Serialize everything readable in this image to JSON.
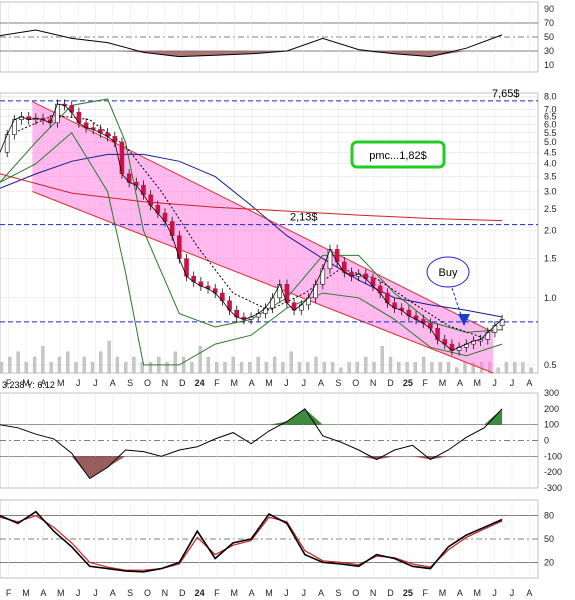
{
  "chart_data": [
    {
      "type": "line",
      "panel": "top-oscillator",
      "ylim": [
        0,
        100
      ],
      "tick_labels": [
        "90",
        "70",
        "50",
        "30",
        "10"
      ],
      "ticks": [
        90,
        70,
        50,
        30,
        10
      ],
      "reference_lines": [
        70,
        50,
        30
      ],
      "series": [
        {
          "color": "#000000",
          "x": [
            0,
            2,
            4,
            6,
            8,
            10,
            12,
            14,
            16,
            18,
            20,
            22,
            24,
            26,
            28
          ],
          "values": [
            52,
            60,
            48,
            42,
            28,
            22,
            24,
            26,
            30,
            48,
            32,
            26,
            22,
            34,
            53
          ]
        }
      ],
      "fill_below_threshold": {
        "threshold": 30,
        "color": "#9a5d5d"
      }
    },
    {
      "type": "line",
      "panel": "price",
      "y_scale": "log",
      "ylim": [
        0.46,
        8.3
      ],
      "tick_labels": [
        "8.0",
        "7.0",
        "6.5",
        "6.0",
        "5.5",
        "5.0",
        "4.5",
        "4.0",
        "3.5",
        "3.0",
        "2.5",
        "2.0",
        "1.5",
        "1.0",
        "0.5"
      ],
      "ticks": [
        8.0,
        7.0,
        6.5,
        6.0,
        5.5,
        5.0,
        4.5,
        4.0,
        3.5,
        3.0,
        2.5,
        2.0,
        1.5,
        1.0,
        0.5
      ],
      "horizontal_lines": [
        {
          "value": 7.65,
          "label": "7,65$",
          "color": "#2222cc"
        },
        {
          "value": 2.13,
          "label": "2,13$",
          "color": "#2222cc"
        },
        {
          "value": 0.78,
          "label": "",
          "color": "#2222cc"
        }
      ],
      "annotations": {
        "pmc_box": "pmc...1,82$",
        "buy_label": "Buy",
        "crosshair_readout": "3.238  Y: 6.12"
      },
      "series": [
        {
          "color": "#000000",
          "x": [
            0.0,
            0.4,
            0.8,
            1.2,
            1.6,
            2.0,
            2.4,
            2.8,
            3.2,
            3.6,
            4.0,
            4.4,
            4.8,
            5.2,
            5.6,
            6.0,
            6.4,
            6.8,
            7.2,
            7.6,
            8.0,
            8.4,
            8.8,
            9.2,
            9.6,
            10.0,
            10.4,
            10.8,
            11.2,
            11.6,
            12.0,
            12.4,
            12.8,
            13.2,
            13.6,
            14.0,
            14.4,
            14.8,
            15.2,
            15.6,
            16.0,
            16.4,
            16.8,
            17.2,
            17.6,
            18.0,
            18.4,
            18.8,
            19.2,
            19.6,
            20.0,
            20.4,
            20.8,
            21.2,
            21.6,
            22.0,
            22.4,
            22.8,
            23.2,
            23.6,
            24.0,
            24.4,
            24.8,
            25.2,
            25.6,
            26.0,
            26.4,
            26.8,
            27.2,
            27.6,
            28.0
          ],
          "values": [
            4.5,
            5.4,
            6.3,
            6.5,
            6.3,
            6.4,
            6.3,
            6.1,
            7.4,
            7.3,
            6.8,
            6.1,
            5.8,
            5.7,
            5.5,
            5.3,
            5.0,
            3.6,
            3.3,
            3.2,
            2.9,
            2.6,
            2.4,
            2.2,
            1.9,
            1.5,
            1.25,
            1.18,
            1.13,
            1.1,
            1.05,
            0.97,
            0.88,
            0.82,
            0.8,
            0.82,
            0.85,
            0.9,
            1.0,
            1.15,
            0.95,
            0.88,
            0.93,
            1.0,
            1.15,
            1.35,
            1.65,
            1.45,
            1.3,
            1.25,
            1.28,
            1.22,
            1.13,
            1.05,
            0.95,
            0.9,
            0.88,
            0.83,
            0.8,
            0.77,
            0.73,
            0.65,
            0.62,
            0.58,
            0.6,
            0.62,
            0.64,
            0.65,
            0.7,
            0.75,
            0.8
          ]
        },
        {
          "color": "#1a1a8a",
          "x": [
            0,
            2,
            4,
            6,
            8,
            10,
            12,
            14,
            16,
            18,
            20,
            22,
            24,
            26,
            28
          ],
          "values": [
            3.1,
            3.6,
            4.1,
            4.4,
            4.4,
            4.1,
            3.5,
            2.6,
            1.9,
            1.5,
            1.2,
            1.0,
            0.93,
            0.88,
            0.82
          ]
        },
        {
          "color": "#cc2222",
          "x": [
            0,
            4,
            8,
            12,
            16,
            20,
            24,
            28
          ],
          "values": [
            3.6,
            2.95,
            2.7,
            2.55,
            2.45,
            2.35,
            2.27,
            2.22
          ]
        },
        {
          "color": "#2a7a2a",
          "x": [
            0,
            2,
            4,
            6,
            7,
            8,
            10,
            12,
            14,
            16,
            18,
            20,
            22,
            24,
            26,
            28
          ],
          "values": [
            3.3,
            5.0,
            7.3,
            7.8,
            5.0,
            2.0,
            0.85,
            0.74,
            0.8,
            1.0,
            1.55,
            1.55,
            1.05,
            0.78,
            0.7,
            0.72
          ]
        },
        {
          "color": "#2a7a2a",
          "x": [
            0,
            2,
            4,
            6,
            7,
            8,
            10,
            12,
            14,
            16,
            18,
            20,
            22,
            24,
            26,
            28
          ],
          "values": [
            3.3,
            4.0,
            5.5,
            3.0,
            1.3,
            0.5,
            0.5,
            0.62,
            0.68,
            0.9,
            1.05,
            1.0,
            0.8,
            0.6,
            0.55,
            0.62
          ]
        },
        {
          "color": "#000000",
          "x": [
            1,
            3,
            5,
            7,
            9,
            11,
            13,
            15,
            17,
            19,
            21,
            23,
            25,
            27
          ],
          "values": [
            5.6,
            6.6,
            6.3,
            4.8,
            3.0,
            1.7,
            1.05,
            0.88,
            1.05,
            1.35,
            1.22,
            0.95,
            0.75,
            0.66
          ]
        }
      ],
      "channel": {
        "color": "#ff80e0",
        "upper": {
          "x": [
            1.8,
            27.5
          ],
          "values": [
            7.6,
            0.7
          ]
        },
        "lower": {
          "x": [
            1.8,
            27.5
          ],
          "values": [
            3.0,
            0.46
          ]
        }
      },
      "volume_bars": [
        2,
        3,
        4,
        2,
        3,
        5,
        2,
        3,
        4,
        2,
        3,
        2,
        4,
        6,
        3,
        2,
        3,
        2,
        2,
        3,
        2,
        4,
        3,
        2,
        5,
        3,
        2,
        2,
        3,
        2,
        2,
        3,
        2,
        3,
        2,
        4,
        2,
        2,
        3,
        2,
        2,
        1,
        2,
        2,
        3,
        2,
        5,
        3,
        2,
        2,
        2,
        3,
        2,
        2,
        2,
        1,
        2,
        2,
        2,
        2,
        1,
        2,
        2,
        2,
        1
      ]
    },
    {
      "type": "area",
      "panel": "momentum-oscillator",
      "ylim": [
        -300,
        300
      ],
      "tick_labels": [
        "300",
        "200",
        "100",
        "0",
        "-100",
        "-200",
        "-300"
      ],
      "ticks": [
        300,
        200,
        100,
        0,
        -100,
        -200,
        -300
      ],
      "reference_lines": [
        100,
        0,
        -100
      ],
      "series": [
        {
          "color": "#000000",
          "x": [
            0,
            1,
            2,
            3,
            4,
            5,
            6,
            7,
            8,
            9,
            10,
            11,
            12,
            13,
            14,
            15,
            16,
            17,
            18,
            19,
            20,
            21,
            22,
            23,
            24,
            25,
            26,
            27,
            28
          ],
          "values": [
            100,
            80,
            40,
            10,
            -80,
            -240,
            -170,
            -60,
            -70,
            -100,
            -60,
            -40,
            10,
            50,
            -20,
            60,
            120,
            200,
            30,
            -10,
            -60,
            -120,
            -60,
            -30,
            -120,
            -60,
            20,
            80,
            200
          ]
        }
      ]
    },
    {
      "type": "line",
      "panel": "stochastic",
      "ylim": [
        0,
        100
      ],
      "tick_labels": [
        "80",
        "50",
        "20"
      ],
      "ticks": [
        80,
        50,
        20
      ],
      "reference_lines": [
        80,
        50,
        20
      ],
      "series": [
        {
          "color": "#000000",
          "x": [
            0,
            1,
            2,
            3,
            4,
            5,
            6,
            7,
            8,
            9,
            10,
            11,
            12,
            13,
            14,
            15,
            16,
            17,
            18,
            19,
            20,
            21,
            22,
            23,
            24,
            25,
            26,
            27,
            28
          ],
          "values": [
            80,
            70,
            85,
            60,
            40,
            15,
            12,
            9,
            8,
            12,
            20,
            60,
            25,
            45,
            50,
            82,
            70,
            30,
            20,
            18,
            15,
            30,
            25,
            15,
            12,
            40,
            55,
            65,
            75
          ]
        },
        {
          "color": "#cc2222",
          "x": [
            0,
            1,
            2,
            3,
            4,
            5,
            6,
            7,
            8,
            9,
            10,
            11,
            12,
            13,
            14,
            15,
            16,
            17,
            18,
            19,
            20,
            21,
            22,
            23,
            24,
            25,
            26,
            27,
            28
          ],
          "values": [
            78,
            72,
            80,
            65,
            45,
            20,
            14,
            10,
            10,
            12,
            18,
            52,
            30,
            42,
            48,
            78,
            72,
            35,
            22,
            20,
            17,
            28,
            26,
            18,
            14,
            36,
            52,
            63,
            73
          ]
        }
      ]
    }
  ],
  "months": [
    "F",
    "M",
    "A",
    "M",
    "J",
    "J",
    "A",
    "S",
    "O",
    "N",
    "D",
    "24",
    "F",
    "M",
    "A",
    "M",
    "J",
    "J",
    "A",
    "S",
    "O",
    "N",
    "D",
    "25",
    "F",
    "M",
    "A",
    "M",
    "J",
    "J",
    "A"
  ],
  "year_labels": [
    "24",
    "25"
  ]
}
